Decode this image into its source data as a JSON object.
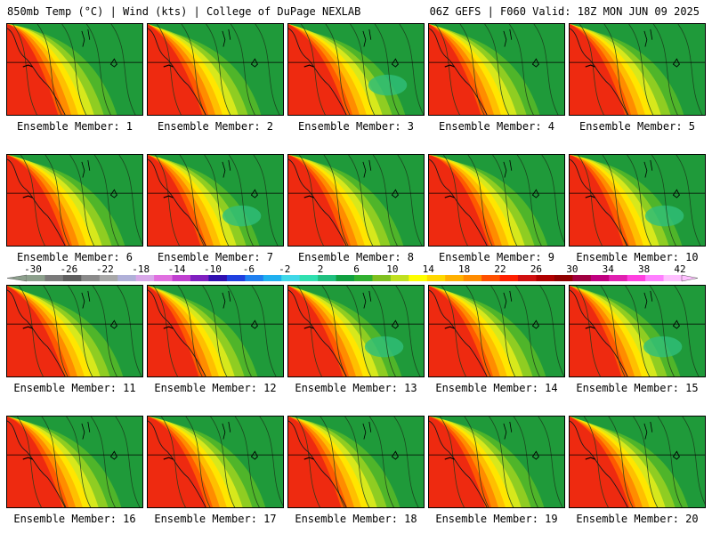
{
  "header": {
    "left_title": "850mb Temp (°C) | Wind (kts) | College of DuPage NEXLAB",
    "right_title": "06Z GEFS | F060 Valid: 18Z MON JUN 09 2025"
  },
  "members": [
    {
      "label": "Ensemble Member: 1"
    },
    {
      "label": "Ensemble Member: 2"
    },
    {
      "label": "Ensemble Member: 3"
    },
    {
      "label": "Ensemble Member: 4"
    },
    {
      "label": "Ensemble Member: 5"
    },
    {
      "label": "Ensemble Member: 6"
    },
    {
      "label": "Ensemble Member: 7"
    },
    {
      "label": "Ensemble Member: 8"
    },
    {
      "label": "Ensemble Member: 9"
    },
    {
      "label": "Ensemble Member: 10"
    },
    {
      "label": "Ensemble Member: 11"
    },
    {
      "label": "Ensemble Member: 12"
    },
    {
      "label": "Ensemble Member: 13"
    },
    {
      "label": "Ensemble Member: 14"
    },
    {
      "label": "Ensemble Member: 15"
    },
    {
      "label": "Ensemble Member: 16"
    },
    {
      "label": "Ensemble Member: 17"
    },
    {
      "label": "Ensemble Member: 18"
    },
    {
      "label": "Ensemble Member: 19"
    },
    {
      "label": "Ensemble Member: 20"
    }
  ],
  "colorbar": {
    "tick_labels": [
      "-30",
      "-26",
      "-22",
      "-18",
      "-14",
      "-10",
      "-6",
      "-2",
      "2",
      "6",
      "10",
      "14",
      "18",
      "22",
      "26",
      "30",
      "34",
      "38",
      "42"
    ],
    "colors": [
      "#8c9f8c",
      "#7a7a7a",
      "#5f5f5f",
      "#8a8a8a",
      "#a8a8a8",
      "#b0b0d8",
      "#d8a8e8",
      "#e070e0",
      "#c040d0",
      "#8020c0",
      "#3010b0",
      "#2040e0",
      "#2080f0",
      "#20b0f0",
      "#40d8e8",
      "#30e0b0",
      "#20c080",
      "#10a040",
      "#30b030",
      "#80c020",
      "#c0e020",
      "#ffff00",
      "#ffd800",
      "#ffb000",
      "#ff8c00",
      "#ff5000",
      "#ff2000",
      "#d01010",
      "#b00000",
      "#900000",
      "#a00040",
      "#c00080",
      "#e020b0",
      "#ff40e0",
      "#ff80ff",
      "#ffc0ff"
    ]
  }
}
